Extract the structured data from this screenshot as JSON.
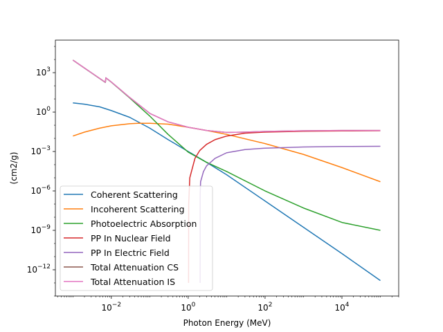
{
  "chart_data": {
    "type": "line",
    "title": "",
    "xlabel": "Photon Energy (MeV)",
    "ylabel": "(cm2/g)",
    "xscale": "log",
    "yscale": "log",
    "xlim": [
      0.00035,
      300000
    ],
    "ylim": [
      1e-14,
      300000
    ],
    "grid": false,
    "legend_position": "lower-left",
    "x_ticks": [
      {
        "value": 0.01,
        "base": "10",
        "exp": "−2"
      },
      {
        "value": 1,
        "base": "10",
        "exp": "0"
      },
      {
        "value": 100,
        "base": "10",
        "exp": "2"
      },
      {
        "value": 10000,
        "base": "10",
        "exp": "4"
      }
    ],
    "y_ticks": [
      {
        "value": 1e-12,
        "base": "10",
        "exp": "−12"
      },
      {
        "value": 1e-09,
        "base": "10",
        "exp": "−9"
      },
      {
        "value": 1e-06,
        "base": "10",
        "exp": "−6"
      },
      {
        "value": 0.001,
        "base": "10",
        "exp": "−3"
      },
      {
        "value": 1,
        "base": "10",
        "exp": "0"
      },
      {
        "value": 1000,
        "base": "10",
        "exp": "3"
      }
    ],
    "series": [
      {
        "name": "Coherent Scattering",
        "color": "#1f77b4",
        "x": [
          0.001,
          0.002,
          0.005,
          0.01,
          0.03,
          0.1,
          0.3,
          1,
          3,
          10,
          100,
          1000,
          10000,
          100000
        ],
        "y": [
          5.0,
          4.0,
          2.5,
          1.3,
          0.4,
          0.06,
          0.008,
          0.001,
          0.00015,
          1.7e-05,
          1.7e-07,
          1.7e-09,
          1.7e-11,
          1.5e-13
        ]
      },
      {
        "name": "Incoherent Scattering",
        "color": "#ff7f0e",
        "x": [
          0.001,
          0.002,
          0.005,
          0.01,
          0.03,
          0.05,
          0.1,
          0.3,
          1,
          3,
          10,
          100,
          1000,
          10000,
          100000
        ],
        "y": [
          0.015,
          0.03,
          0.06,
          0.09,
          0.13,
          0.14,
          0.14,
          0.12,
          0.07,
          0.04,
          0.02,
          0.004,
          0.0006,
          6e-05,
          5e-06
        ]
      },
      {
        "name": "Photoelectric Absorption",
        "color": "#2ca02c",
        "x": [
          0.001,
          0.007,
          0.0072,
          0.01,
          0.03,
          0.1,
          0.3,
          1,
          3,
          10,
          100,
          1000,
          10000,
          100000
        ],
        "y": [
          9000,
          180,
          400,
          190,
          12,
          0.5,
          0.02,
          0.0009,
          0.00015,
          3e-05,
          1e-06,
          5e-08,
          4e-09,
          1e-09
        ]
      },
      {
        "name": "PP In Nuclear Field",
        "color": "#d62728",
        "x": [
          1.022,
          1.03,
          1.1,
          1.5,
          2,
          3,
          5,
          10,
          30,
          100,
          1000,
          10000,
          100000
        ],
        "y": [
          1e-13,
          1e-07,
          1e-05,
          0.0003,
          0.0012,
          0.0035,
          0.008,
          0.015,
          0.025,
          0.03,
          0.035,
          0.037,
          0.038
        ]
      },
      {
        "name": "PP In Electric Field",
        "color": "#9467bd",
        "x": [
          2.044,
          2.05,
          2.1,
          2.5,
          3,
          5,
          10,
          30,
          100,
          1000,
          10000,
          100000
        ],
        "y": [
          1e-13,
          5e-07,
          5e-06,
          3e-05,
          8e-05,
          0.0003,
          0.0008,
          0.0014,
          0.0018,
          0.0022,
          0.0024,
          0.0025
        ]
      },
      {
        "name": "Total Attenuation CS",
        "color": "#8c564b",
        "x": [
          0.001,
          0.007,
          0.0072,
          0.01,
          0.03,
          0.1,
          0.3,
          1,
          3,
          10,
          30,
          100,
          1000,
          10000,
          100000
        ],
        "y": [
          9000,
          185,
          405,
          195,
          13,
          0.8,
          0.18,
          0.07,
          0.04,
          0.028,
          0.03,
          0.034,
          0.038,
          0.04,
          0.04
        ]
      },
      {
        "name": "Total Attenuation IS",
        "color": "#e377c2",
        "x": [
          0.001,
          0.007,
          0.0072,
          0.01,
          0.03,
          0.1,
          0.3,
          1,
          3,
          10,
          30,
          100,
          1000,
          10000,
          100000
        ],
        "y": [
          9000,
          185,
          405,
          195,
          13,
          0.8,
          0.18,
          0.07,
          0.04,
          0.028,
          0.03,
          0.034,
          0.038,
          0.04,
          0.04
        ]
      }
    ]
  }
}
